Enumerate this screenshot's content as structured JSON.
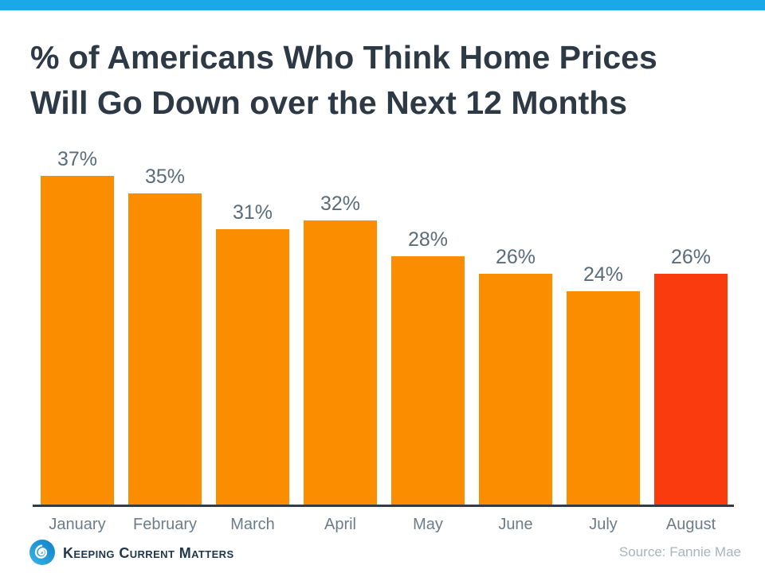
{
  "page": {
    "topbar_color": "#1BA8E8",
    "background": "#FFFFFF"
  },
  "header": {
    "title_line1": "% of Americans Who Think Home Prices",
    "title_line2": "Will Go Down over the Next 12 Months"
  },
  "chart_data": {
    "type": "bar",
    "title": "% of Americans Who Think Home Prices Will Go Down over the Next 12 Months",
    "categories": [
      "January",
      "February",
      "March",
      "April",
      "May",
      "June",
      "July",
      "August"
    ],
    "values": [
      37,
      35,
      31,
      32,
      28,
      26,
      24,
      26
    ],
    "value_labels": [
      "37%",
      "35%",
      "31%",
      "32%",
      "28%",
      "26%",
      "24%",
      "26%"
    ],
    "bar_colors": [
      "#FB8D00",
      "#FB8D00",
      "#FB8D00",
      "#FB8D00",
      "#FB8D00",
      "#FB8D00",
      "#FB8D00",
      "#F93B0E"
    ],
    "xlabel": "",
    "ylabel": "",
    "ylim": [
      0,
      40
    ],
    "grid": false,
    "legend": false,
    "value_label_color": "#5A6C7B",
    "month_label_color": "#6B7C8B",
    "axis_color": "#343B42"
  },
  "footer": {
    "brand": "Keeping Current Matters",
    "source": "Source: Fannie Mae",
    "logo_blue_light": "#29ABE2",
    "logo_blue_dark": "#0C7FC4"
  }
}
